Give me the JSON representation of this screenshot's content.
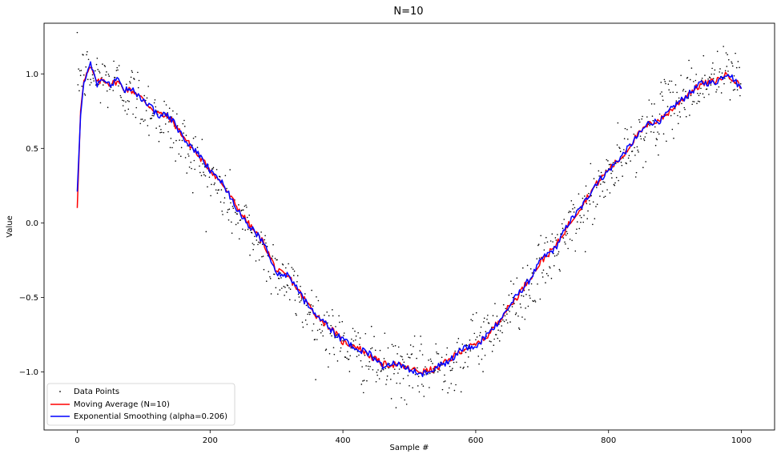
{
  "chart_data": {
    "type": "line",
    "title": "N=10",
    "xlabel": "Sample #",
    "ylabel": "Value",
    "xlim": [
      -50,
      1050
    ],
    "ylim": [
      -1.39,
      1.34
    ],
    "xticks": [
      0,
      200,
      400,
      600,
      800,
      1000
    ],
    "yticks": [
      -1.0,
      -0.5,
      0.0,
      0.5,
      1.0
    ],
    "ytick_labels": [
      "−1.0",
      "−0.5",
      "0.0",
      "0.5",
      "1.0"
    ],
    "grid": false,
    "legend_position": "lower-left",
    "legend": [
      {
        "label": "Data Points",
        "marker": "dot",
        "color": "#000000"
      },
      {
        "label": "Moving Average (N=10)",
        "marker": "line",
        "color": "#ff0000"
      },
      {
        "label": "Exponential Smoothing (alpha=0.206)",
        "marker": "line",
        "color": "#0000ff"
      }
    ],
    "underlying_curve": "cos(2*pi*x/1000)",
    "n_points": 1000,
    "data_noise_sd": 0.1,
    "series": [
      {
        "name": "Moving Average (N=10)",
        "color": "#ff0000",
        "x": [
          0,
          5,
          10,
          20,
          30,
          40,
          50,
          60,
          70,
          80,
          90,
          100,
          120,
          140,
          160,
          180,
          200,
          220,
          240,
          260,
          280,
          300,
          320,
          340,
          360,
          380,
          400,
          420,
          440,
          460,
          480,
          500,
          520,
          540,
          560,
          580,
          600,
          620,
          640,
          660,
          680,
          700,
          720,
          740,
          760,
          780,
          800,
          820,
          840,
          860,
          880,
          900,
          920,
          940,
          960,
          980,
          1000
        ],
        "y": [
          0.1,
          0.75,
          0.97,
          1.04,
          0.94,
          0.96,
          0.93,
          0.95,
          0.9,
          0.89,
          0.87,
          0.82,
          0.74,
          0.7,
          0.58,
          0.46,
          0.36,
          0.25,
          0.11,
          -0.02,
          -0.13,
          -0.32,
          -0.37,
          -0.5,
          -0.62,
          -0.7,
          -0.8,
          -0.83,
          -0.89,
          -0.95,
          -0.95,
          -0.98,
          -1.0,
          -0.98,
          -0.92,
          -0.85,
          -0.82,
          -0.75,
          -0.62,
          -0.51,
          -0.38,
          -0.25,
          -0.16,
          -0.01,
          0.12,
          0.25,
          0.36,
          0.44,
          0.57,
          0.66,
          0.7,
          0.78,
          0.87,
          0.93,
          0.95,
          1.0,
          0.91
        ]
      },
      {
        "name": "Exponential Smoothing (alpha=0.206)",
        "color": "#0000ff",
        "x": [
          0,
          5,
          10,
          20,
          30,
          40,
          50,
          60,
          70,
          80,
          90,
          100,
          120,
          140,
          160,
          180,
          200,
          220,
          240,
          260,
          280,
          300,
          320,
          340,
          360,
          380,
          400,
          420,
          440,
          460,
          480,
          500,
          520,
          540,
          560,
          580,
          600,
          620,
          640,
          660,
          680,
          700,
          720,
          740,
          760,
          780,
          800,
          820,
          840,
          860,
          880,
          900,
          920,
          940,
          960,
          980,
          1000
        ],
        "y": [
          0.21,
          0.72,
          0.95,
          1.07,
          0.93,
          0.97,
          0.92,
          0.96,
          0.89,
          0.9,
          0.86,
          0.83,
          0.73,
          0.71,
          0.57,
          0.47,
          0.35,
          0.26,
          0.1,
          -0.03,
          -0.12,
          -0.33,
          -0.36,
          -0.51,
          -0.61,
          -0.71,
          -0.79,
          -0.84,
          -0.88,
          -0.96,
          -0.94,
          -0.99,
          -1.01,
          -0.97,
          -0.93,
          -0.84,
          -0.83,
          -0.74,
          -0.63,
          -0.5,
          -0.39,
          -0.24,
          -0.17,
          0.0,
          0.11,
          0.26,
          0.35,
          0.45,
          0.56,
          0.67,
          0.69,
          0.79,
          0.86,
          0.94,
          0.94,
          1.01,
          0.9
        ]
      }
    ]
  }
}
